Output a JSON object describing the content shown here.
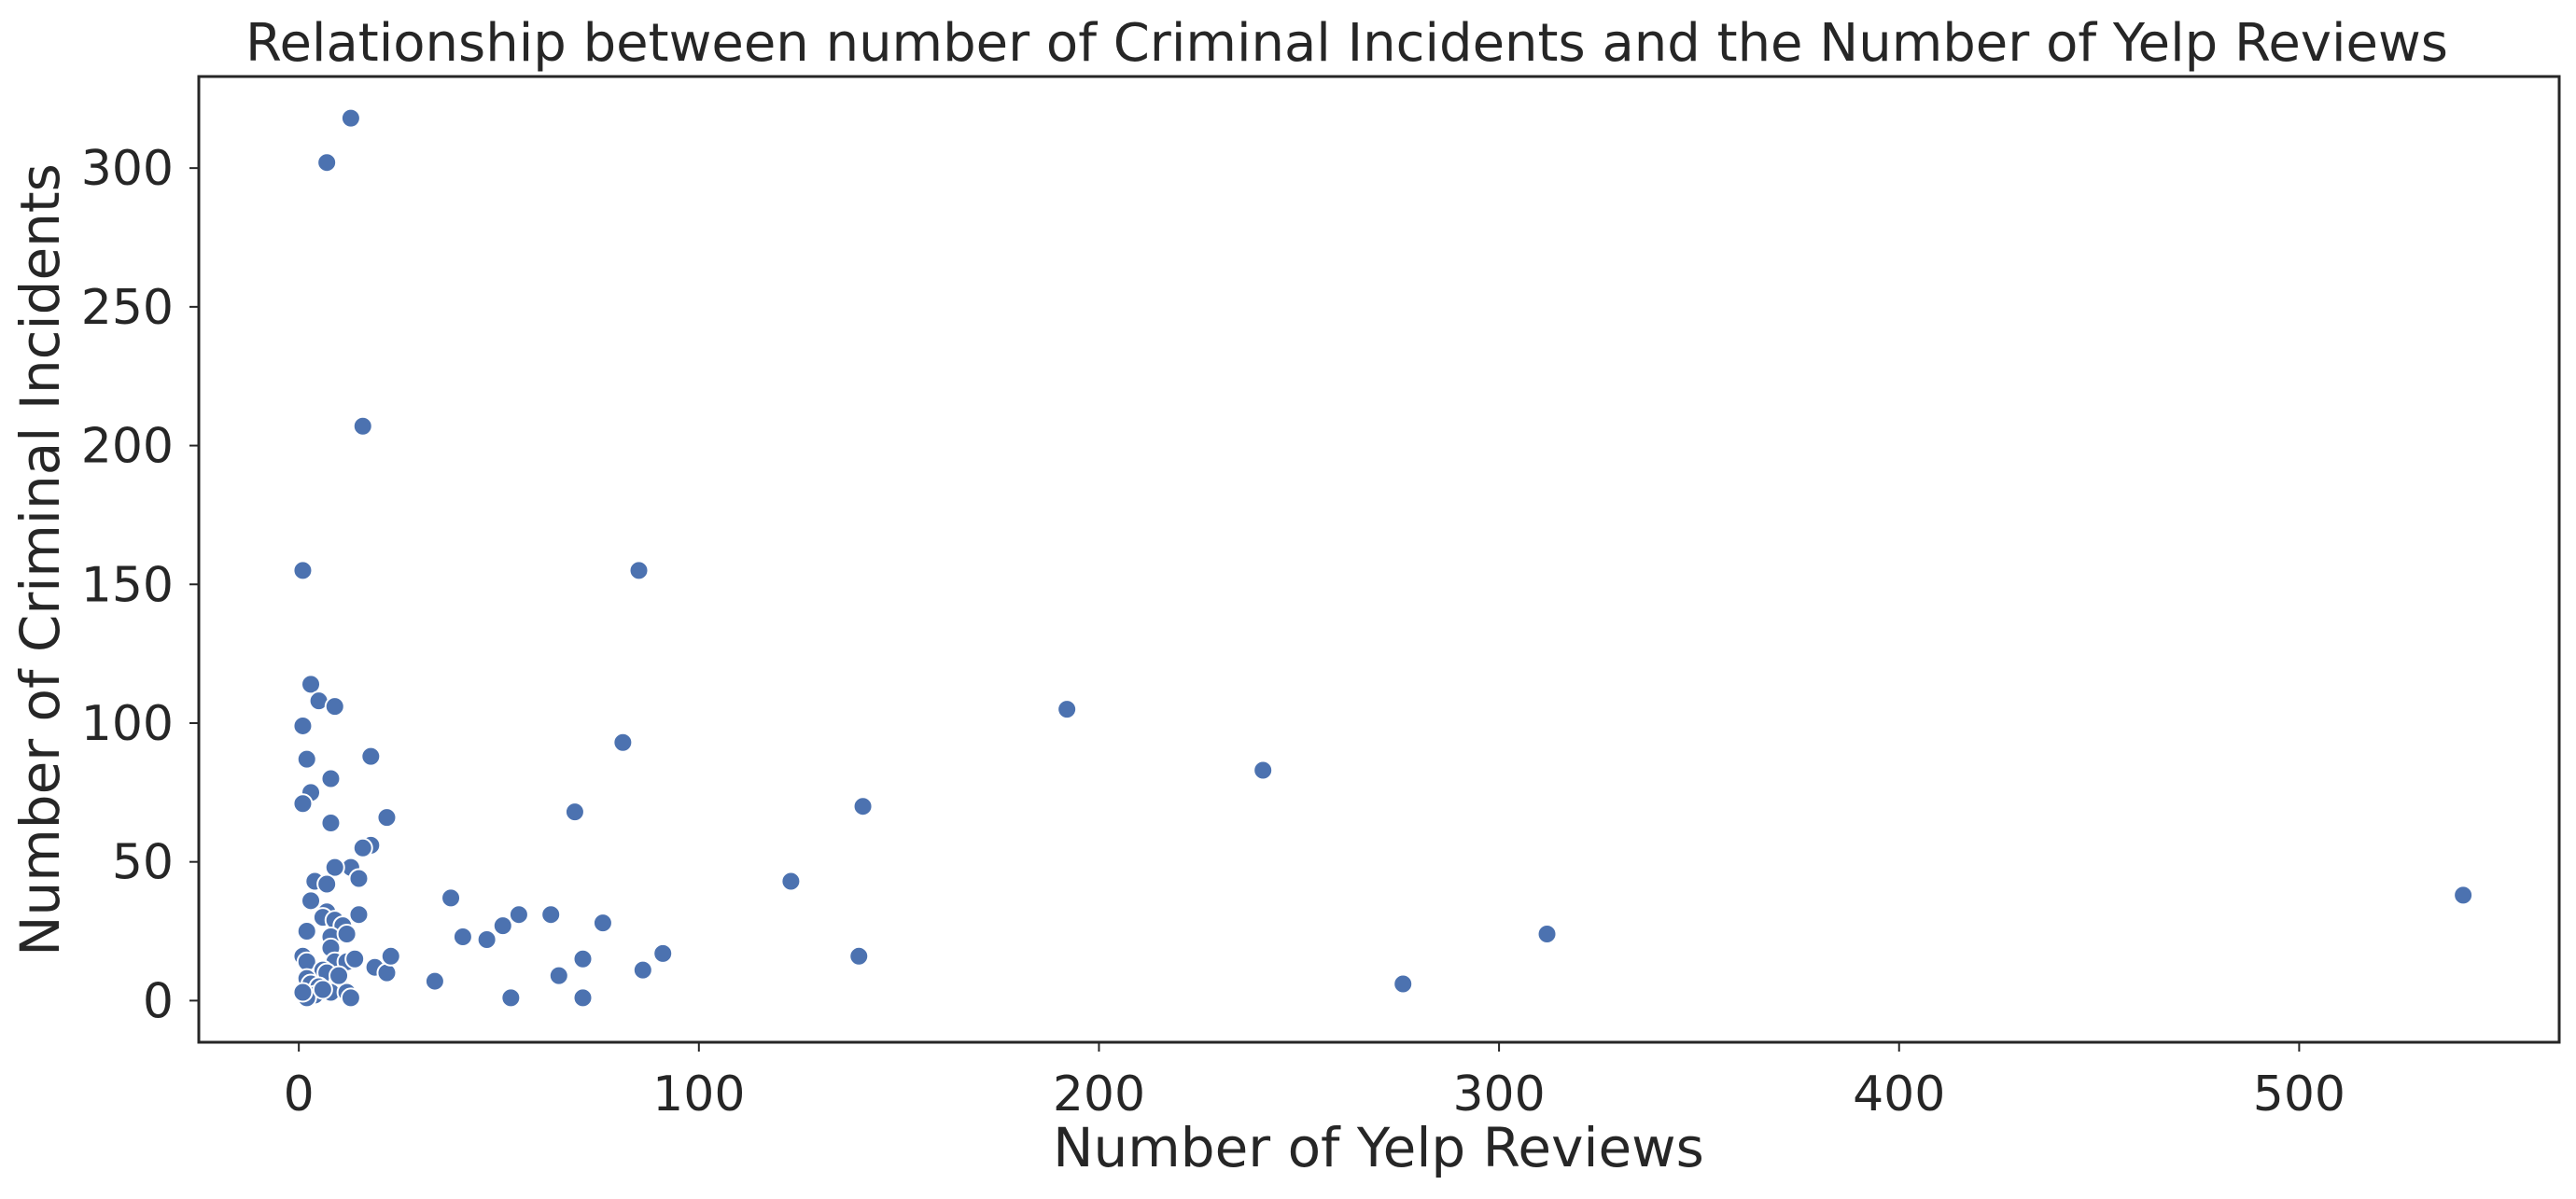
{
  "chart_data": {
    "type": "scatter",
    "title": "Relationship between number of Criminal Incidents and the Number of Yelp Reviews",
    "xlabel": "Number of Yelp Reviews",
    "ylabel": "Number of Criminal Incidents",
    "xlim": [
      -25,
      565
    ],
    "ylim": [
      -15,
      333
    ],
    "xticks": [
      0,
      100,
      200,
      300,
      400,
      500
    ],
    "yticks": [
      0,
      50,
      100,
      150,
      200,
      250,
      300
    ],
    "grid": false,
    "legend": "none",
    "color": "#4c72b0",
    "points": [
      [
        13,
        318
      ],
      [
        7,
        302
      ],
      [
        16,
        207
      ],
      [
        1,
        155
      ],
      [
        85,
        155
      ],
      [
        3,
        114
      ],
      [
        5,
        108
      ],
      [
        9,
        106
      ],
      [
        1,
        99
      ],
      [
        2,
        87
      ],
      [
        18,
        88
      ],
      [
        3,
        75
      ],
      [
        1,
        71
      ],
      [
        8,
        80
      ],
      [
        22,
        66
      ],
      [
        8,
        64
      ],
      [
        18,
        56
      ],
      [
        16,
        55
      ],
      [
        13,
        48
      ],
      [
        9,
        48
      ],
      [
        15,
        44
      ],
      [
        4,
        43
      ],
      [
        7,
        42
      ],
      [
        3,
        36
      ],
      [
        7,
        32
      ],
      [
        15,
        31
      ],
      [
        6,
        30
      ],
      [
        9,
        29
      ],
      [
        11,
        27
      ],
      [
        2,
        25
      ],
      [
        8,
        23
      ],
      [
        12,
        24
      ],
      [
        8,
        19
      ],
      [
        1,
        16
      ],
      [
        2,
        14
      ],
      [
        9,
        14
      ],
      [
        12,
        14
      ],
      [
        14,
        15
      ],
      [
        19,
        12
      ],
      [
        22,
        10
      ],
      [
        23,
        16
      ],
      [
        6,
        11
      ],
      [
        7,
        10
      ],
      [
        10,
        7
      ],
      [
        2,
        8
      ],
      [
        3,
        6
      ],
      [
        5,
        5
      ],
      [
        8,
        3
      ],
      [
        12,
        3
      ],
      [
        4,
        2
      ],
      [
        2,
        1
      ],
      [
        13,
        1
      ],
      [
        1,
        3
      ],
      [
        10,
        9
      ],
      [
        6,
        4
      ],
      [
        38,
        37
      ],
      [
        41,
        23
      ],
      [
        47,
        22
      ],
      [
        51,
        27
      ],
      [
        55,
        31
      ],
      [
        63,
        31
      ],
      [
        34,
        7
      ],
      [
        53,
        1
      ],
      [
        65,
        9
      ],
      [
        71,
        15
      ],
      [
        71,
        1
      ],
      [
        69,
        68
      ],
      [
        76,
        28
      ],
      [
        81,
        93
      ],
      [
        86,
        11
      ],
      [
        91,
        17
      ],
      [
        123,
        43
      ],
      [
        140,
        16
      ],
      [
        141,
        70
      ],
      [
        192,
        105
      ],
      [
        241,
        83
      ],
      [
        276,
        6
      ],
      [
        312,
        24
      ],
      [
        541,
        38
      ]
    ]
  }
}
